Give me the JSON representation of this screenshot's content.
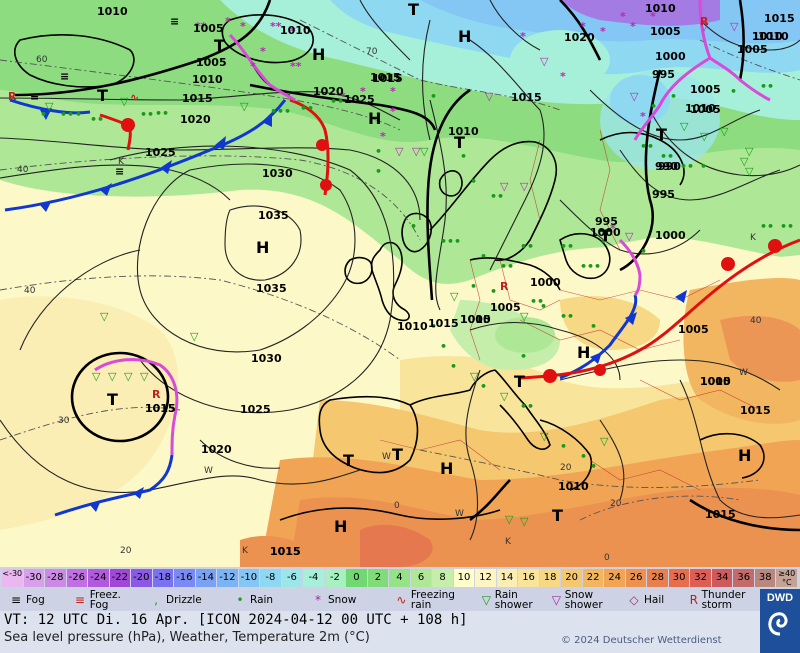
{
  "pressure_labels": [
    "1010",
    "1005",
    "1010",
    "1005",
    "1010",
    "1015",
    "1020",
    "1025",
    "1030",
    "1035",
    "1035",
    "1030",
    "1025",
    "1020",
    "1015",
    "1010",
    "1005",
    "1000",
    "995",
    "990",
    "1020",
    "1025",
    "1015",
    "1010",
    "1005",
    "1010",
    "1015",
    "1015",
    "1005",
    "1000",
    "995",
    "1020",
    "1015",
    "1015",
    "1005",
    "1000",
    "1005",
    "1010",
    "1015",
    "1010",
    "1015",
    "1010",
    "1005",
    "1010",
    "1005",
    "1010",
    "1015",
    "1015",
    "1010",
    "1005",
    "1010",
    "1000",
    "995",
    "990",
    "1015"
  ],
  "centers": {
    "highs": [
      "H",
      "H",
      "H",
      "H",
      "H",
      "H",
      "H",
      "H"
    ],
    "lows": [
      "T",
      "T",
      "T",
      "T",
      "T",
      "T",
      "T",
      "T",
      "T",
      "T",
      "T"
    ],
    "small": [
      "K",
      "K",
      "W",
      "W",
      "W",
      "K",
      "K",
      "W"
    ]
  },
  "temp_labels": [
    "60",
    "40",
    "30",
    "20",
    "70",
    "20",
    "40",
    "40",
    "0",
    "0",
    "20"
  ],
  "scale": {
    "values": [
      "<-30",
      "-30",
      "-28",
      "-26",
      "-24",
      "-22",
      "-20",
      "-18",
      "-16",
      "-14",
      "-12",
      "-10",
      "-8",
      "-6",
      "-4",
      "-2",
      "0",
      "2",
      "4",
      "6",
      "8",
      "10",
      "12",
      "14",
      "16",
      "18",
      "20",
      "22",
      "24",
      "26",
      "28",
      "30",
      "32",
      "34",
      "36",
      "38",
      "≥40 °C"
    ],
    "colors": [
      "#e8b8ee",
      "#d9a0ea",
      "#cc8ae4",
      "#c070e0",
      "#b25adc",
      "#a048d6",
      "#8c58e6",
      "#7a72ee",
      "#7a8af2",
      "#7aa2f4",
      "#7ab4f4",
      "#84c6f4",
      "#8ed8f2",
      "#9ce6ea",
      "#a6efd8",
      "#a8f0c0",
      "#70d870",
      "#80dc78",
      "#96e288",
      "#aee896",
      "#c4eeaa",
      "#ffffcc",
      "#fdf6c4",
      "#fbeeb4",
      "#f9e49c",
      "#f7d884",
      "#f5c870",
      "#f3b660",
      "#f0a454",
      "#ec9250",
      "#e8804e",
      "#e46e4e",
      "#dc5e54",
      "#cf5a5e",
      "#c36a6a",
      "#b8877e",
      "#c4a296"
    ]
  },
  "legend": [
    {
      "icon": "fog-icon",
      "glyph": "≡",
      "color": "#000000",
      "label": "Fog"
    },
    {
      "icon": "freezing-fog-icon",
      "glyph": "≡",
      "color": "#c02020",
      "label": "Freez. Fog"
    },
    {
      "icon": "drizzle-icon",
      "glyph": ",",
      "color": "#229922",
      "label": "Drizzle"
    },
    {
      "icon": "rain-icon",
      "glyph": "•",
      "color": "#229922",
      "label": "Rain"
    },
    {
      "icon": "snow-icon",
      "glyph": "*",
      "color": "#a02aa0",
      "label": "Snow"
    },
    {
      "icon": "freezing-rain-icon",
      "glyph": "∿",
      "color": "#c02020",
      "label": "Freezing rain"
    },
    {
      "icon": "rain-shower-icon",
      "glyph": "▽",
      "color": "#229922",
      "label": "Rain shower"
    },
    {
      "icon": "snow-shower-icon",
      "glyph": "▽",
      "color": "#a02aa0",
      "label": "Snow shower"
    },
    {
      "icon": "hail-icon",
      "glyph": "◇",
      "color": "#a02a60",
      "label": "Hail"
    },
    {
      "icon": "thunderstorm-icon",
      "glyph": "R",
      "color": "#c02020",
      "label": "Thunder storm"
    }
  ],
  "info": {
    "valid_time": "VT: 12 UTC Di.  16 Apr. [ICON 2024-04-12  00 UTC + 108 h]",
    "subtitle": "Sea level pressure (hPa), Weather, Temperature 2m (°C)",
    "copyright": "© 2024 Deutscher Wetterdienst",
    "logo": "DWD"
  }
}
